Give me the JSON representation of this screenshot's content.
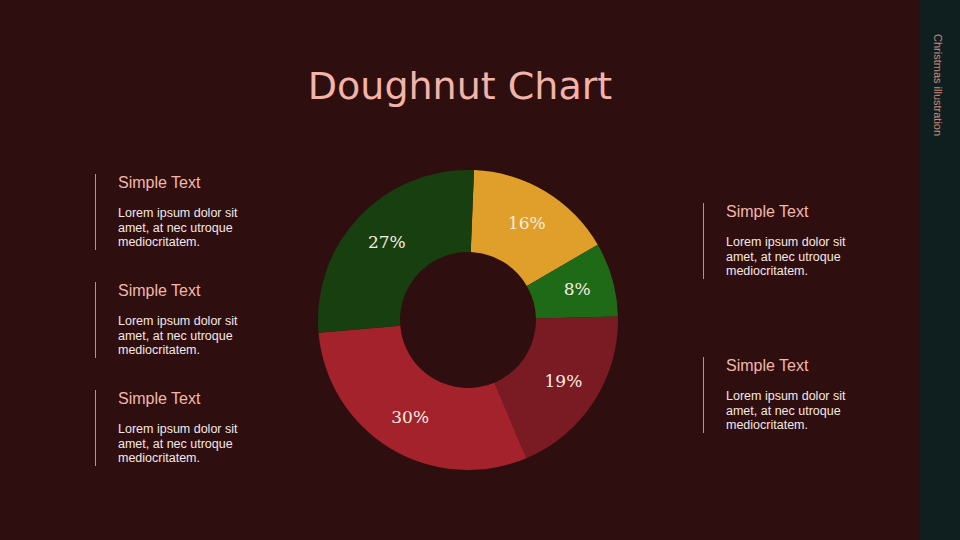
{
  "sidebar_label": "Christmas illustration",
  "chart_data": {
    "type": "doughnut",
    "title": "Doughnut Chart",
    "values": [
      16,
      8,
      19,
      30,
      27
    ],
    "value_labels": [
      "16%",
      "8%",
      "19%",
      "30%",
      "27%"
    ],
    "colors": [
      "#e09e2a",
      "#1e6a16",
      "#7a1b24",
      "#a4222b",
      "#173f10"
    ],
    "data_labels": true
  },
  "text_blocks": {
    "left": [
      {
        "heading": "Simple Text",
        "body": "Lorem ipsum dolor sit amet, at nec utroque mediocritatem."
      },
      {
        "heading": "Simple Text",
        "body": "Lorem ipsum dolor sit amet, at nec utroque mediocritatem."
      },
      {
        "heading": "Simple Text",
        "body": "Lorem ipsum dolor sit amet, at nec utroque mediocritatem."
      }
    ],
    "right": [
      {
        "heading": "Simple Text",
        "body": "Lorem ipsum dolor sit amet, at nec utroque mediocritatem."
      },
      {
        "heading": "Simple Text",
        "body": "Lorem ipsum dolor sit amet, at nec utroque mediocritatem."
      }
    ]
  }
}
